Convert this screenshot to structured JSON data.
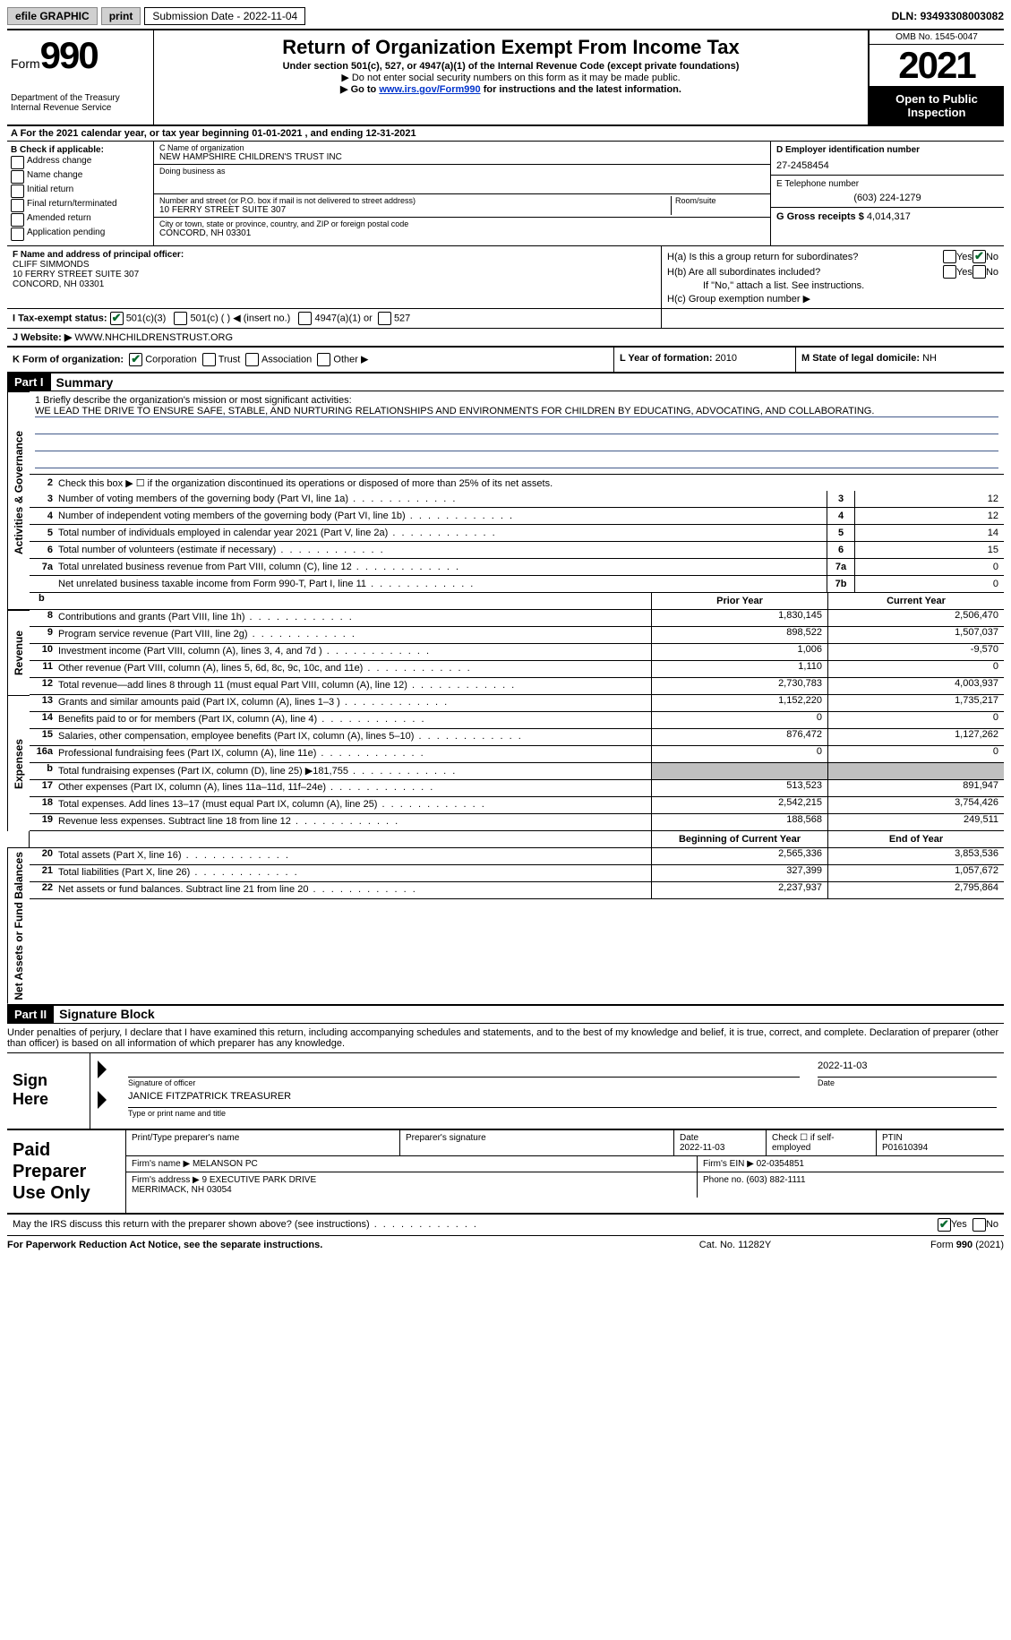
{
  "topbar": {
    "efile": "efile GRAPHIC",
    "print": "print",
    "submission_label": "Submission Date - ",
    "submission_date": "2022-11-04",
    "dln_label": "DLN: ",
    "dln": "93493308003082"
  },
  "header": {
    "form_word": "Form",
    "form_num": "990",
    "title": "Return of Organization Exempt From Income Tax",
    "sub1": "Under section 501(c), 527, or 4947(a)(1) of the Internal Revenue Code (except private foundations)",
    "sub2": "▶ Do not enter social security numbers on this form as it may be made public.",
    "sub3_pre": "▶ Go to ",
    "sub3_link": "www.irs.gov/Form990",
    "sub3_post": " for instructions and the latest information.",
    "dept": "Department of the Treasury\nInternal Revenue Service",
    "omb": "OMB No. 1545-0047",
    "year": "2021",
    "open": "Open to Public Inspection"
  },
  "row_a": "A For the 2021 calendar year, or tax year beginning 01-01-2021   , and ending 12-31-2021",
  "section_b": {
    "label": "B Check if applicable:",
    "items": [
      "Address change",
      "Name change",
      "Initial return",
      "Final return/terminated",
      "Amended return",
      "Application pending"
    ]
  },
  "section_c": {
    "name_label": "C Name of organization",
    "name": "NEW HAMPSHIRE CHILDREN'S TRUST INC",
    "dba_label": "Doing business as",
    "dba": "",
    "street_label": "Number and street (or P.O. box if mail is not delivered to street address)",
    "street": "10 FERRY STREET SUITE 307",
    "room_label": "Room/suite",
    "city_label": "City or town, state or province, country, and ZIP or foreign postal code",
    "city": "CONCORD, NH  03301"
  },
  "section_d": {
    "ein_label": "D Employer identification number",
    "ein": "27-2458454",
    "phone_label": "E Telephone number",
    "phone": "(603) 224-1279",
    "gross_label": "G Gross receipts $ ",
    "gross": "4,014,317"
  },
  "section_f": {
    "label": "F  Name and address of principal officer:",
    "name": "CLIFF SIMMONDS",
    "street": "10 FERRY STREET SUITE 307",
    "city": "CONCORD, NH  03301"
  },
  "section_h": {
    "ha": "H(a)  Is this a group return for subordinates?",
    "hb": "H(b)  Are all subordinates included?",
    "hb_note": "If \"No,\" attach a list. See instructions.",
    "hc": "H(c)  Group exemption number ▶",
    "yes": "Yes",
    "no": "No"
  },
  "row_i": {
    "label": "I    Tax-exempt status:",
    "opts": [
      "501(c)(3)",
      "501(c) (  ) ◀ (insert no.)",
      "4947(a)(1) or",
      "527"
    ]
  },
  "row_j": {
    "label": "J    Website: ▶  ",
    "val": "WWW.NHCHILDRENSTRUST.ORG"
  },
  "row_k": {
    "k_label": "K Form of organization:",
    "k_opts": [
      "Corporation",
      "Trust",
      "Association",
      "Other ▶"
    ],
    "l_label": "L Year of formation: ",
    "l_val": "2010",
    "m_label": "M State of legal domicile: ",
    "m_val": "NH"
  },
  "part1": {
    "num": "Part I",
    "title": "Summary"
  },
  "mission": {
    "label": "1   Briefly describe the organization's mission or most significant activities:",
    "text": "WE LEAD THE DRIVE TO ENSURE SAFE, STABLE, AND NURTURING RELATIONSHIPS AND ENVIRONMENTS FOR CHILDREN BY EDUCATING, ADVOCATING, AND COLLABORATING."
  },
  "line2": "Check this box ▶ ☐  if the organization discontinued its operations or disposed of more than 25% of its net assets.",
  "summary_lines": [
    {
      "n": "3",
      "d": "Number of voting members of the governing body (Part VI, line 1a)",
      "box": "3",
      "v": "12"
    },
    {
      "n": "4",
      "d": "Number of independent voting members of the governing body (Part VI, line 1b)",
      "box": "4",
      "v": "12"
    },
    {
      "n": "5",
      "d": "Total number of individuals employed in calendar year 2021 (Part V, line 2a)",
      "box": "5",
      "v": "14"
    },
    {
      "n": "6",
      "d": "Total number of volunteers (estimate if necessary)",
      "box": "6",
      "v": "15"
    },
    {
      "n": "7a",
      "d": "Total unrelated business revenue from Part VIII, column (C), line 12",
      "box": "7a",
      "v": "0"
    },
    {
      "n": "",
      "d": "Net unrelated business taxable income from Form 990-T, Part I, line 11",
      "box": "7b",
      "v": "0"
    }
  ],
  "col_headers": {
    "prior": "Prior Year",
    "current": "Current Year",
    "boy": "Beginning of Current Year",
    "eoy": "End of Year"
  },
  "revenue": [
    {
      "n": "8",
      "d": "Contributions and grants (Part VIII, line 1h)",
      "p": "1,830,145",
      "c": "2,506,470"
    },
    {
      "n": "9",
      "d": "Program service revenue (Part VIII, line 2g)",
      "p": "898,522",
      "c": "1,507,037"
    },
    {
      "n": "10",
      "d": "Investment income (Part VIII, column (A), lines 3, 4, and 7d )",
      "p": "1,006",
      "c": "-9,570"
    },
    {
      "n": "11",
      "d": "Other revenue (Part VIII, column (A), lines 5, 6d, 8c, 9c, 10c, and 11e)",
      "p": "1,110",
      "c": "0"
    },
    {
      "n": "12",
      "d": "Total revenue—add lines 8 through 11 (must equal Part VIII, column (A), line 12)",
      "p": "2,730,783",
      "c": "4,003,937"
    }
  ],
  "expenses": [
    {
      "n": "13",
      "d": "Grants and similar amounts paid (Part IX, column (A), lines 1–3 )",
      "p": "1,152,220",
      "c": "1,735,217"
    },
    {
      "n": "14",
      "d": "Benefits paid to or for members (Part IX, column (A), line 4)",
      "p": "0",
      "c": "0"
    },
    {
      "n": "15",
      "d": "Salaries, other compensation, employee benefits (Part IX, column (A), lines 5–10)",
      "p": "876,472",
      "c": "1,127,262"
    },
    {
      "n": "16a",
      "d": "Professional fundraising fees (Part IX, column (A), line 11e)",
      "p": "0",
      "c": "0"
    },
    {
      "n": "b",
      "d": "Total fundraising expenses (Part IX, column (D), line 25) ▶181,755",
      "p": "",
      "c": "",
      "gray": true
    },
    {
      "n": "17",
      "d": "Other expenses (Part IX, column (A), lines 11a–11d, 11f–24e)",
      "p": "513,523",
      "c": "891,947"
    },
    {
      "n": "18",
      "d": "Total expenses. Add lines 13–17 (must equal Part IX, column (A), line 25)",
      "p": "2,542,215",
      "c": "3,754,426"
    },
    {
      "n": "19",
      "d": "Revenue less expenses. Subtract line 18 from line 12",
      "p": "188,568",
      "c": "249,511"
    }
  ],
  "netassets": [
    {
      "n": "20",
      "d": "Total assets (Part X, line 16)",
      "p": "2,565,336",
      "c": "3,853,536"
    },
    {
      "n": "21",
      "d": "Total liabilities (Part X, line 26)",
      "p": "327,399",
      "c": "1,057,672"
    },
    {
      "n": "22",
      "d": "Net assets or fund balances. Subtract line 21 from line 20",
      "p": "2,237,937",
      "c": "2,795,864"
    }
  ],
  "vtabs": {
    "act": "Activities & Governance",
    "rev": "Revenue",
    "exp": "Expenses",
    "net": "Net Assets or Fund Balances"
  },
  "part2": {
    "num": "Part II",
    "title": "Signature Block"
  },
  "penalty": "Under penalties of perjury, I declare that I have examined this return, including accompanying schedules and statements, and to the best of my knowledge and belief, it is true, correct, and complete. Declaration of preparer (other than officer) is based on all information of which preparer has any knowledge.",
  "sign": {
    "here": "Sign Here",
    "sig_label": "Signature of officer",
    "date": "2022-11-03",
    "date_label": "Date",
    "name": "JANICE FITZPATRICK  TREASURER",
    "name_label": "Type or print name and title"
  },
  "prep": {
    "label": "Paid Preparer Use Only",
    "r1": {
      "c1": "Print/Type preparer's name",
      "c2": "Preparer's signature",
      "c3": "Date\n2022-11-03",
      "c4": "Check ☐ if self-employed",
      "c5": "PTIN\nP01610394"
    },
    "r2": {
      "firm_label": "Firm's name    ▶",
      "firm": "MELANSON PC",
      "ein_label": "Firm's EIN ▶",
      "ein": "02-0354851"
    },
    "r3": {
      "addr_label": "Firm's address ▶",
      "addr": "9 EXECUTIVE PARK DRIVE\nMERRIMACK, NH  03054",
      "phone_label": "Phone no.",
      "phone": "(603) 882-1111"
    }
  },
  "discuss": {
    "text": "May the IRS discuss this return with the preparer shown above? (see instructions)",
    "yes": "Yes",
    "no": "No"
  },
  "footer": {
    "l": "For Paperwork Reduction Act Notice, see the separate instructions.",
    "m": "Cat. No. 11282Y",
    "r": "Form 990 (2021)"
  }
}
